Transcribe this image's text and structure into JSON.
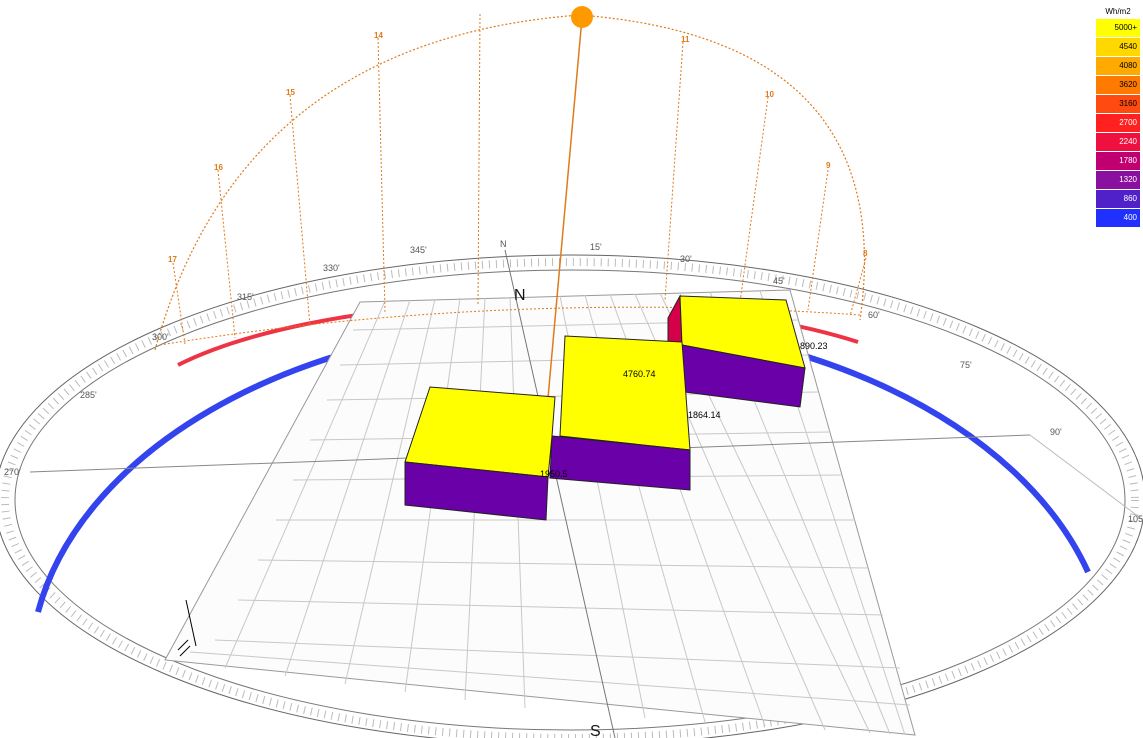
{
  "compass": {
    "north_label": "N",
    "south_label": "S",
    "rim_north": "N",
    "degrees": [
      "270'",
      "285'",
      "300'",
      "315'",
      "330'",
      "345'",
      "15'",
      "30'",
      "45'",
      "60'",
      "75'",
      "90'",
      "105"
    ]
  },
  "sunpath": {
    "hours": [
      "17",
      "16",
      "15",
      "14",
      "11",
      "10",
      "9",
      "8"
    ],
    "sun_color": "#ff9900",
    "path_color": "#e07a1a"
  },
  "building": {
    "roof_color": "#ffff00",
    "wall_color": "#6a00a8",
    "values": [
      "4760.74",
      "890.23",
      "1864.14",
      "1950.5"
    ]
  },
  "legend": {
    "title": "Wh/m2",
    "items": [
      {
        "label": "5000+",
        "color": "#ffff00",
        "text": "#000000"
      },
      {
        "label": "4540",
        "color": "#ffd800",
        "text": "#000000"
      },
      {
        "label": "4080",
        "color": "#ffaa00",
        "text": "#000000"
      },
      {
        "label": "3620",
        "color": "#ff7a00",
        "text": "#000000"
      },
      {
        "label": "3160",
        "color": "#ff4a10",
        "text": "#000000"
      },
      {
        "label": "2700",
        "color": "#ff2020",
        "text": "#ffffff"
      },
      {
        "label": "2240",
        "color": "#f01040",
        "text": "#ffffff"
      },
      {
        "label": "1780",
        "color": "#c00070",
        "text": "#ffffff"
      },
      {
        "label": "1320",
        "color": "#8a10a0",
        "text": "#ffffff"
      },
      {
        "label": "860",
        "color": "#5020c8",
        "text": "#ffffff"
      },
      {
        "label": "400",
        "color": "#2030ff",
        "text": "#ffffff"
      }
    ]
  }
}
